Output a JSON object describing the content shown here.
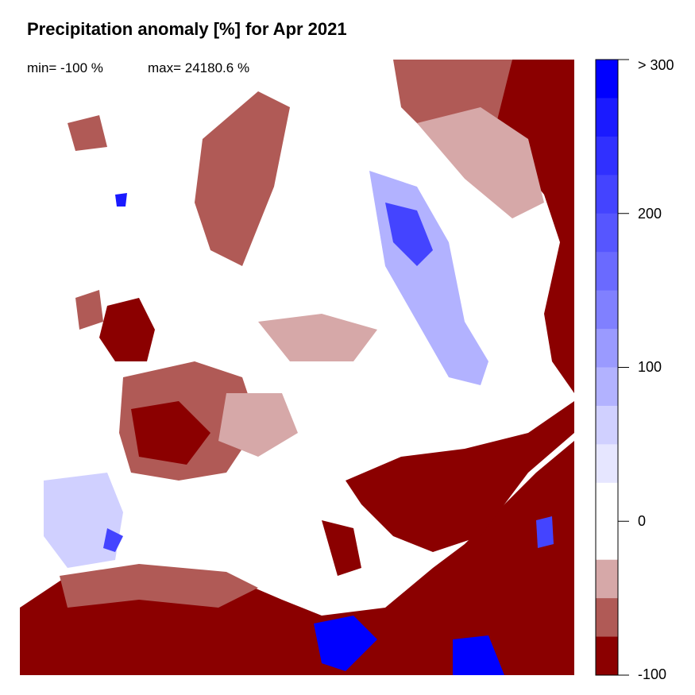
{
  "title": "Precipitation anomaly [%] for Apr 2021",
  "stats": {
    "min": "min= -100 %",
    "max": "max= 24180.6 %"
  },
  "colorbar": {
    "unit": "%",
    "tick_labels": [
      "> 300",
      "200",
      "100",
      "0",
      "-100"
    ],
    "tick_values": [
      300,
      200,
      100,
      0,
      -100
    ],
    "range": [
      -100,
      300
    ],
    "colors_top_to_bottom": [
      "#0000ff",
      "#1a1aff",
      "#3030ff",
      "#4444ff",
      "#5656ff",
      "#6a6aff",
      "#8080ff",
      "#9a9aff",
      "#b2b2ff",
      "#d0d0ff",
      "#e6e6ff",
      "#ffffff",
      "#ffffff",
      "#d6a8a8",
      "#b05a56",
      "#8b0000"
    ]
  },
  "map": {
    "region": "Europe",
    "ocean_color": "#ffffff"
  }
}
